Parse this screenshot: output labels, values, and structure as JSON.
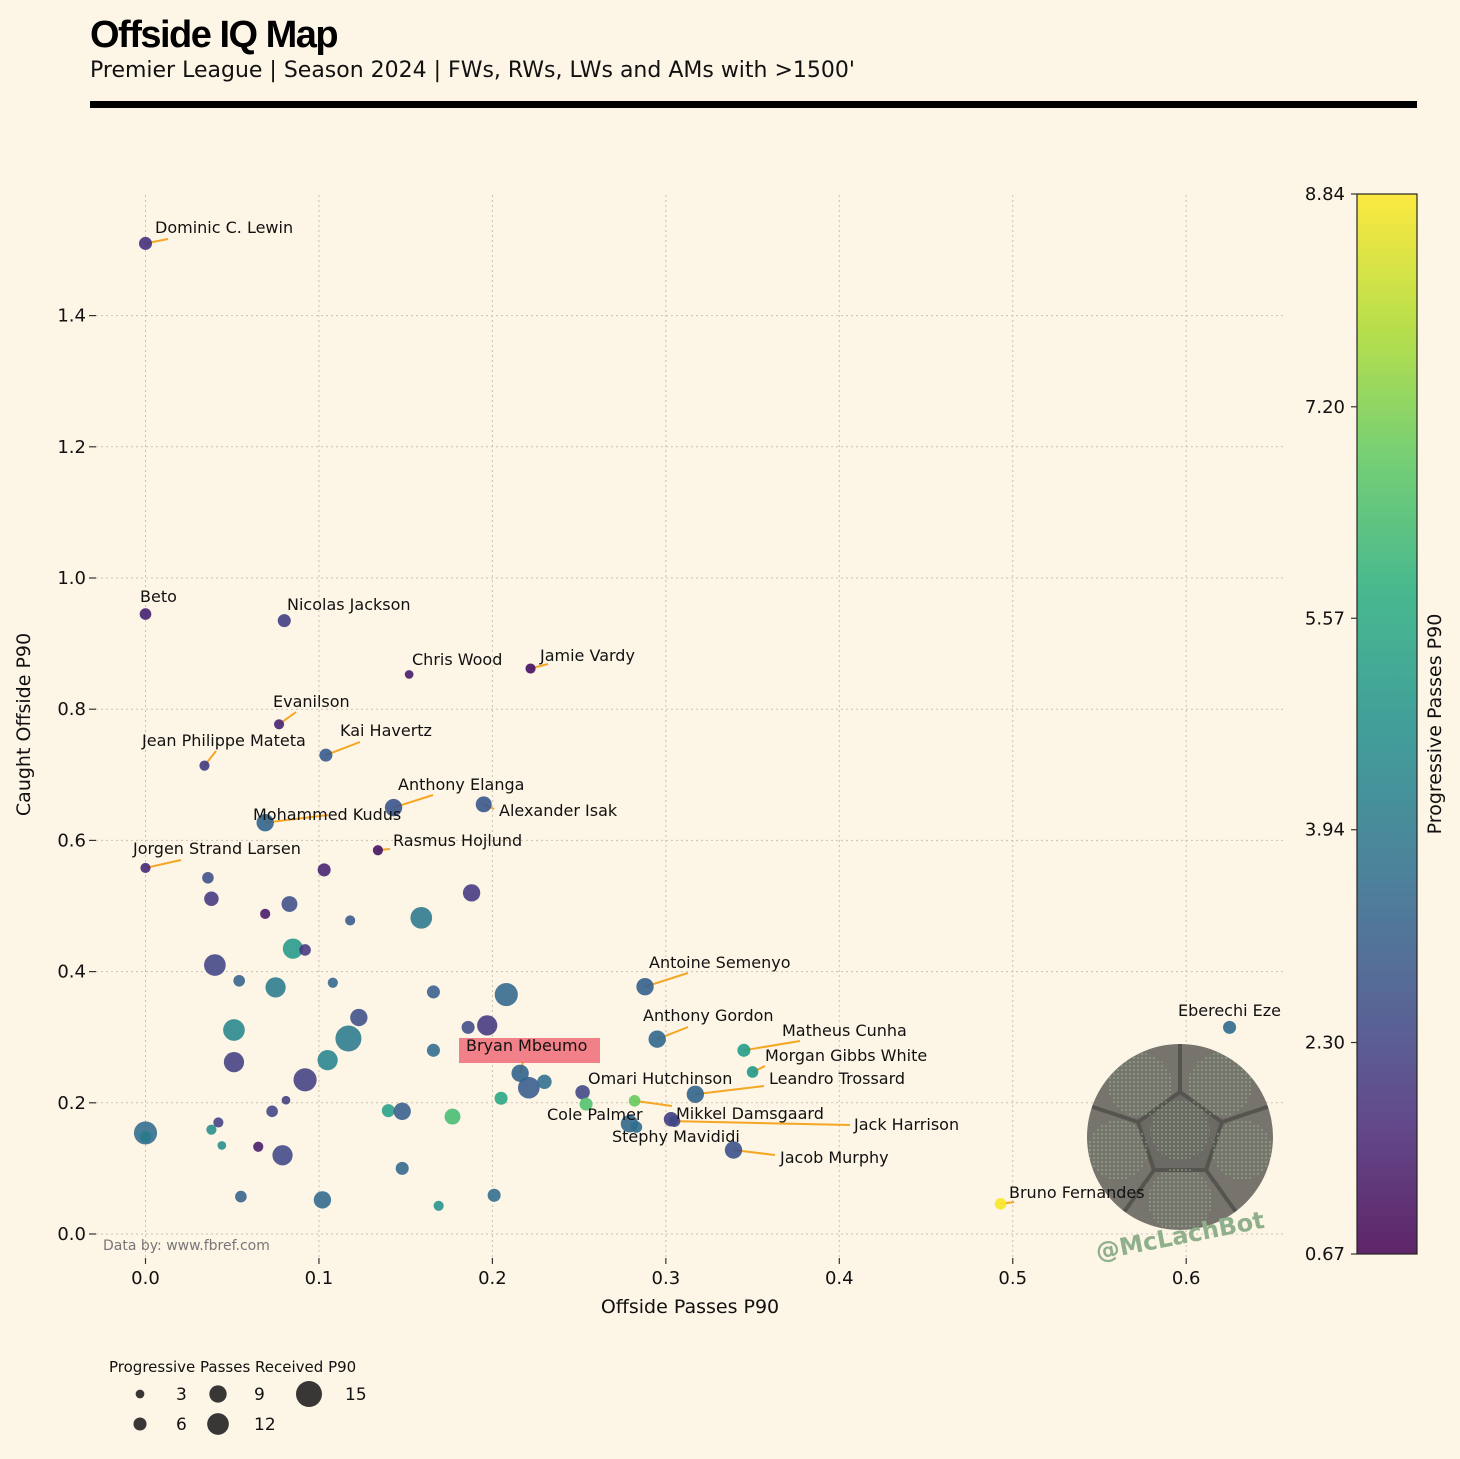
{
  "header": {
    "title": "Offside IQ Map",
    "subtitle": "Premier League | Season 2024 | FWs, RWs, LWs and AMs with >1500'"
  },
  "source_note": "Data by: www.fbref.com",
  "watermark": "@McLachBot",
  "colors": {
    "background": "#fdf5e6",
    "leader_line": "#f5a623",
    "highlight_box": "#ee6b77",
    "colormap": "viridis"
  },
  "chart_data": {
    "type": "scatter",
    "xlabel": "Offside Passes P90",
    "ylabel": "Caught Offside P90",
    "xlim": [
      -0.03,
      0.655
    ],
    "ylim": [
      -0.02,
      1.58
    ],
    "xticks": [
      "0.0",
      "0.1",
      "0.2",
      "0.3",
      "0.4",
      "0.5",
      "0.6"
    ],
    "yticks": [
      "0.0",
      "0.2",
      "0.4",
      "0.6",
      "0.8",
      "1.0",
      "1.2",
      "1.4"
    ],
    "grid": true,
    "colorbar": {
      "label": "Progressive Passes P90",
      "min": 0.67,
      "max": 8.84,
      "ticks": [
        "0.67",
        "2.30",
        "3.94",
        "5.57",
        "7.20",
        "8.84"
      ]
    },
    "size_legend": {
      "title": "Progressive Passes Received P90",
      "values": [
        "3",
        "6",
        "9",
        "12",
        "15"
      ]
    },
    "highlighted_player": "Bryan Mbeumo",
    "labeled_points": [
      {
        "name": "Dominic C. Lewin",
        "x": 0.0,
        "y": 1.51,
        "size": 6,
        "color": 1.8
      },
      {
        "name": "Beto",
        "x": 0.0,
        "y": 0.945,
        "size": 5,
        "color": 1.4
      },
      {
        "name": "Nicolas Jackson",
        "x": 0.08,
        "y": 0.935,
        "size": 6,
        "color": 2.2
      },
      {
        "name": "Chris Wood",
        "x": 0.152,
        "y": 0.853,
        "size": 3,
        "color": 1.3
      },
      {
        "name": "Jamie Vardy",
        "x": 0.222,
        "y": 0.862,
        "size": 4,
        "color": 1.0
      },
      {
        "name": "Evanilson",
        "x": 0.077,
        "y": 0.777,
        "size": 4,
        "color": 1.5
      },
      {
        "name": "Kai Havertz",
        "x": 0.104,
        "y": 0.73,
        "size": 6,
        "color": 3.0
      },
      {
        "name": "Jean Philippe Mateta",
        "x": 0.034,
        "y": 0.714,
        "size": 4,
        "color": 2.1
      },
      {
        "name": "Anthony Elanga",
        "x": 0.143,
        "y": 0.65,
        "size": 9,
        "color": 2.8
      },
      {
        "name": "Alexander Isak",
        "x": 0.195,
        "y": 0.655,
        "size": 8,
        "color": 2.9
      },
      {
        "name": "Mohammed Kudus",
        "x": 0.069,
        "y": 0.627,
        "size": 9,
        "color": 3.3
      },
      {
        "name": "Rasmus Hojlund",
        "x": 0.134,
        "y": 0.585,
        "size": 4,
        "color": 1.1
      },
      {
        "name": "Jorgen Strand Larsen",
        "x": 0.0,
        "y": 0.558,
        "size": 4,
        "color": 1.6
      },
      {
        "name": "Antoine Semenyo",
        "x": 0.288,
        "y": 0.377,
        "size": 9,
        "color": 3.2
      },
      {
        "name": "Eberechi Eze",
        "x": 0.625,
        "y": 0.315,
        "size": 6,
        "color": 3.5
      },
      {
        "name": "Anthony Gordon",
        "x": 0.295,
        "y": 0.297,
        "size": 9,
        "color": 3.4
      },
      {
        "name": "Matheus Cunha",
        "x": 0.345,
        "y": 0.28,
        "size": 6,
        "color": 5.2
      },
      {
        "name": "Bryan Mbeumo",
        "x": 0.216,
        "y": 0.245,
        "size": 9,
        "color": 3.3
      },
      {
        "name": "Morgan Gibbs White",
        "x": 0.35,
        "y": 0.247,
        "size": 5,
        "color": 5.0
      },
      {
        "name": "Leandro Trossard",
        "x": 0.317,
        "y": 0.213,
        "size": 9,
        "color": 3.3
      },
      {
        "name": "Omari Hutchinson",
        "x": 0.282,
        "y": 0.203,
        "size": 5,
        "color": 6.9
      },
      {
        "name": "Mikkel Damsgaard",
        "x": 0.303,
        "y": 0.175,
        "size": 7,
        "color": 2.2
      },
      {
        "name": "Cole Palmer",
        "x": 0.279,
        "y": 0.168,
        "size": 9,
        "color": 3.4
      },
      {
        "name": "Jack Harrison",
        "x": 0.305,
        "y": 0.172,
        "size": 5,
        "color": 2.4
      },
      {
        "name": "Stephy Mavididi",
        "x": 0.283,
        "y": 0.163,
        "size": 5,
        "color": 3.6
      },
      {
        "name": "Jacob Murphy",
        "x": 0.339,
        "y": 0.128,
        "size": 9,
        "color": 2.7
      },
      {
        "name": "Bruno Fernandes",
        "x": 0.493,
        "y": 0.046,
        "size": 5,
        "color": 8.8
      }
    ],
    "other_points": [
      {
        "x": 0.036,
        "y": 0.543,
        "size": 5,
        "color": 2.6
      },
      {
        "x": 0.038,
        "y": 0.511,
        "size": 7,
        "color": 2.0
      },
      {
        "x": 0.069,
        "y": 0.488,
        "size": 4,
        "color": 1.2
      },
      {
        "x": 0.103,
        "y": 0.555,
        "size": 6,
        "color": 1.4
      },
      {
        "x": 0.083,
        "y": 0.503,
        "size": 8,
        "color": 2.6
      },
      {
        "x": 0.118,
        "y": 0.478,
        "size": 4,
        "color": 2.9
      },
      {
        "x": 0.159,
        "y": 0.482,
        "size": 12,
        "color": 3.9
      },
      {
        "x": 0.188,
        "y": 0.52,
        "size": 9,
        "color": 2.0
      },
      {
        "x": 0.085,
        "y": 0.435,
        "size": 11,
        "color": 5.0
      },
      {
        "x": 0.092,
        "y": 0.433,
        "size": 5,
        "color": 2.0
      },
      {
        "x": 0.04,
        "y": 0.41,
        "size": 12,
        "color": 2.3
      },
      {
        "x": 0.054,
        "y": 0.386,
        "size": 5,
        "color": 3.2
      },
      {
        "x": 0.075,
        "y": 0.376,
        "size": 11,
        "color": 4.0
      },
      {
        "x": 0.108,
        "y": 0.383,
        "size": 4,
        "color": 3.4
      },
      {
        "x": 0.166,
        "y": 0.369,
        "size": 6,
        "color": 3.1
      },
      {
        "x": 0.208,
        "y": 0.365,
        "size": 13,
        "color": 3.4
      },
      {
        "x": 0.051,
        "y": 0.311,
        "size": 12,
        "color": 4.4
      },
      {
        "x": 0.123,
        "y": 0.33,
        "size": 9,
        "color": 2.6
      },
      {
        "x": 0.117,
        "y": 0.298,
        "size": 15,
        "color": 4.0
      },
      {
        "x": 0.186,
        "y": 0.315,
        "size": 6,
        "color": 2.5
      },
      {
        "x": 0.197,
        "y": 0.318,
        "size": 11,
        "color": 2.0
      },
      {
        "x": 0.051,
        "y": 0.262,
        "size": 11,
        "color": 2.2
      },
      {
        "x": 0.105,
        "y": 0.265,
        "size": 11,
        "color": 4.3
      },
      {
        "x": 0.166,
        "y": 0.28,
        "size": 6,
        "color": 3.5
      },
      {
        "x": 0.092,
        "y": 0.235,
        "size": 13,
        "color": 2.2
      },
      {
        "x": 0.221,
        "y": 0.223,
        "size": 12,
        "color": 3.0
      },
      {
        "x": 0.23,
        "y": 0.232,
        "size": 7,
        "color": 3.6
      },
      {
        "x": 0.252,
        "y": 0.216,
        "size": 7,
        "color": 2.3
      },
      {
        "x": 0.205,
        "y": 0.207,
        "size": 6,
        "color": 5.5
      },
      {
        "x": 0.254,
        "y": 0.198,
        "size": 6,
        "color": 6.5
      },
      {
        "x": 0.081,
        "y": 0.204,
        "size": 3,
        "color": 2.1
      },
      {
        "x": 0.073,
        "y": 0.187,
        "size": 5,
        "color": 2.3
      },
      {
        "x": 0.14,
        "y": 0.188,
        "size": 6,
        "color": 5.3
      },
      {
        "x": 0.148,
        "y": 0.187,
        "size": 9,
        "color": 3.1
      },
      {
        "x": 0.177,
        "y": 0.179,
        "size": 8,
        "color": 6.3
      },
      {
        "x": 0.042,
        "y": 0.17,
        "size": 4,
        "color": 2.2
      },
      {
        "x": 0.038,
        "y": 0.159,
        "size": 4,
        "color": 4.6
      },
      {
        "x": 0.0,
        "y": 0.154,
        "size": 13,
        "color": 3.5
      },
      {
        "x": 0.0,
        "y": 0.148,
        "size": 5,
        "color": 4.0
      },
      {
        "x": 0.044,
        "y": 0.135,
        "size": 3,
        "color": 4.6
      },
      {
        "x": 0.065,
        "y": 0.133,
        "size": 4,
        "color": 1.2
      },
      {
        "x": 0.079,
        "y": 0.12,
        "size": 11,
        "color": 2.4
      },
      {
        "x": 0.148,
        "y": 0.1,
        "size": 6,
        "color": 3.4
      },
      {
        "x": 0.055,
        "y": 0.057,
        "size": 5,
        "color": 3.2
      },
      {
        "x": 0.102,
        "y": 0.052,
        "size": 9,
        "color": 3.4
      },
      {
        "x": 0.169,
        "y": 0.043,
        "size": 4,
        "color": 4.8
      },
      {
        "x": 0.201,
        "y": 0.059,
        "size": 6,
        "color": 3.5
      }
    ]
  }
}
